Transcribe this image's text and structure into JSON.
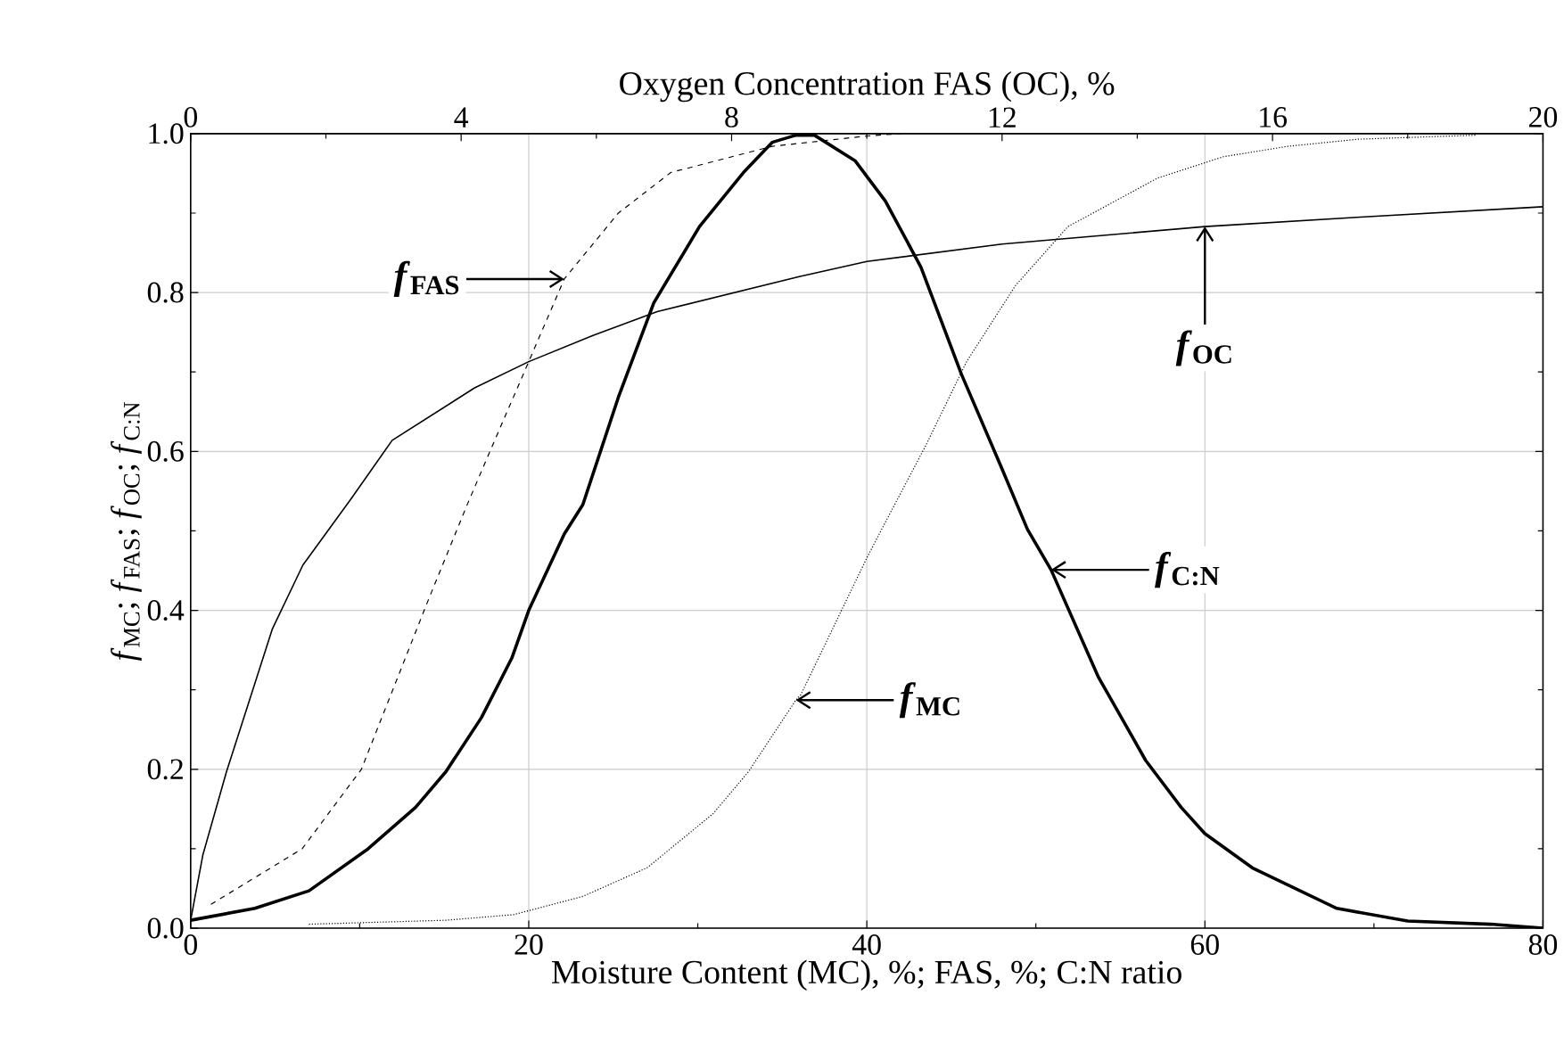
{
  "chart_data": {
    "type": "line",
    "xlabel": "Moisture Content (MC), %; FAS, %; C:N ratio",
    "x2label": "Oxygen Concentration FAS (OC), %",
    "ylabel": "*f*$_{MC}$; *f*$_{FAS}$; *f*$_{OC}$; *f*$_{C:N}$",
    "xlim": [
      0,
      80
    ],
    "xticks": [
      0,
      20,
      40,
      60,
      80
    ],
    "x2lim": [
      0,
      20
    ],
    "x2ticks": [
      0,
      4,
      8,
      12,
      16,
      20
    ],
    "ylim": [
      0,
      1
    ],
    "yticks": [
      {
        "value": 0,
        "label": "0.0"
      },
      0.2,
      0.4,
      0.6,
      0.8,
      {
        "value": 1,
        "label": "1.0"
      }
    ],
    "grid": true,
    "marker": "none",
    "series": [
      {
        "color": "#000000",
        "line_style": "dashed",
        "x": [
          1.2,
          6.6,
          10.1,
          14,
          16.3,
          17.5,
          20,
          22.1,
          25.3,
          28.4,
          34.4,
          40,
          42
        ],
        "values": [
          0.03,
          0.1,
          0.2,
          0.41,
          0.53,
          0.59,
          0.713,
          0.817,
          0.9,
          0.951,
          0.984,
          0.997,
          1.0
        ]
      },
      {
        "color": "#000000",
        "line_style": "solid",
        "axis": "x2",
        "x": [
          0,
          0.18,
          0.53,
          0.87,
          1.21,
          1.66,
          2.37,
          2.98,
          4.2,
          5,
          5.95,
          6.9,
          9,
          10,
          12,
          15,
          17.3,
          20
        ],
        "values": [
          0.01,
          0.092,
          0.197,
          0.287,
          0.377,
          0.457,
          0.54,
          0.614,
          0.68,
          0.713,
          0.746,
          0.776,
          0.82,
          0.839,
          0.861,
          0.883,
          0.895,
          0.908
        ]
      },
      {
        "color": "#000000",
        "line_style": "solid",
        "x": [
          0,
          3.8,
          7,
          10.5,
          13.3,
          15.1,
          17.2,
          19,
          20,
          22.1,
          23.2,
          25.3,
          27.4,
          30.1,
          32.7,
          34.4,
          35.8,
          36.9,
          39.3,
          41.1,
          43.2,
          45.6,
          48,
          49.5,
          50.9,
          53.7,
          56.5,
          58.6,
          60,
          62.8,
          67.8,
          72,
          76.9,
          80
        ],
        "values": [
          0.01,
          0.025,
          0.047,
          0.1,
          0.152,
          0.197,
          0.265,
          0.34,
          0.4,
          0.496,
          0.533,
          0.668,
          0.787,
          0.883,
          0.951,
          0.989,
          0.998,
          0.998,
          0.966,
          0.915,
          0.832,
          0.697,
          0.578,
          0.502,
          0.451,
          0.316,
          0.211,
          0.152,
          0.119,
          0.076,
          0.025,
          0.009,
          0.005,
          0.0
        ]
      },
      {
        "color": "#000000",
        "line_style": "dotted",
        "x": [
          7,
          15.1,
          19.1,
          23.2,
          27,
          30.9,
          33,
          35.8,
          36.1,
          40,
          41.1,
          43.5,
          45.9,
          48.8,
          51.9,
          57.2,
          61.1,
          64.9,
          69.1,
          76
        ],
        "values": [
          0.005,
          0.01,
          0.017,
          0.04,
          0.076,
          0.144,
          0.197,
          0.287,
          0.294,
          0.466,
          0.511,
          0.608,
          0.713,
          0.809,
          0.883,
          0.944,
          0.971,
          0.984,
          0.993,
          0.998
        ]
      }
    ],
    "annotations": [
      {
        "text": "*f*$_{FAS}$",
        "x": 22.1,
        "y": 0.817
      },
      {
        "text": "*f*$_{OC}$",
        "x": 60,
        "y": 0.883
      },
      {
        "text": "*f*$_{C:N}$",
        "x": 50.9,
        "y": 0.451
      },
      {
        "text": "*f*$_{MC}$",
        "x": 35.8,
        "y": 0.287
      }
    ]
  }
}
